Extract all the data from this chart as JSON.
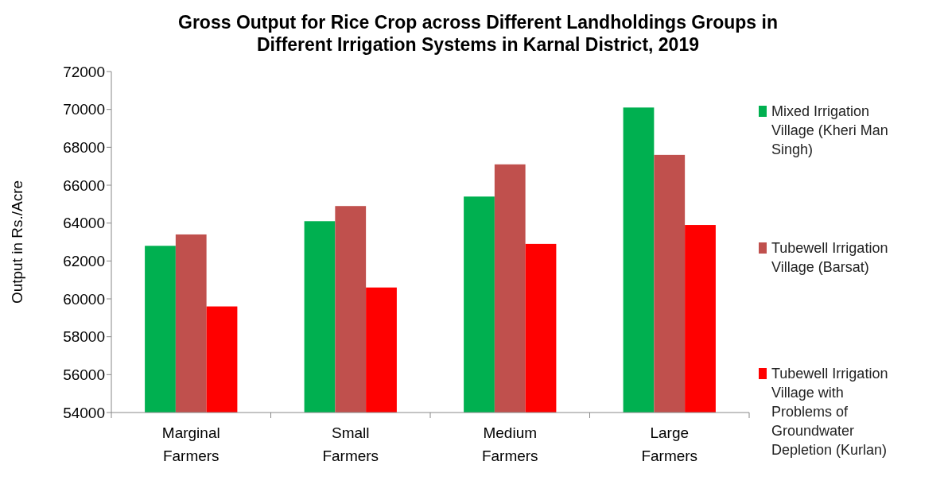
{
  "chart_data": {
    "type": "bar",
    "title": "Gross Output for Rice Crop across Different Landholdings Groups in Different Irrigation Systems in Karnal District, 2019",
    "ylabel": "Output in Rs./Acre",
    "categories": [
      "Marginal Farmers",
      "Small Farmers",
      "Medium Farmers",
      "Large Farmers"
    ],
    "series": [
      {
        "name": "Mixed Irrigation Village (Kheri Man Singh)",
        "color": "#00b050",
        "values": [
          62800,
          64100,
          65400,
          70100
        ]
      },
      {
        "name": "Tubewell Irrigation Village (Barsat)",
        "color": "#c0504d",
        "values": [
          63400,
          64900,
          67100,
          67600
        ]
      },
      {
        "name": "Tubewell Irrigation Village with Problems of Groundwater Depletion (Kurlan)",
        "color": "#ff0000",
        "values": [
          59600,
          60600,
          62900,
          63900
        ]
      }
    ],
    "ylim": [
      54000,
      72000
    ],
    "yticks": [
      54000,
      56000,
      58000,
      60000,
      62000,
      64000,
      66000,
      68000,
      70000,
      72000
    ],
    "grid": false,
    "legend": "right"
  }
}
